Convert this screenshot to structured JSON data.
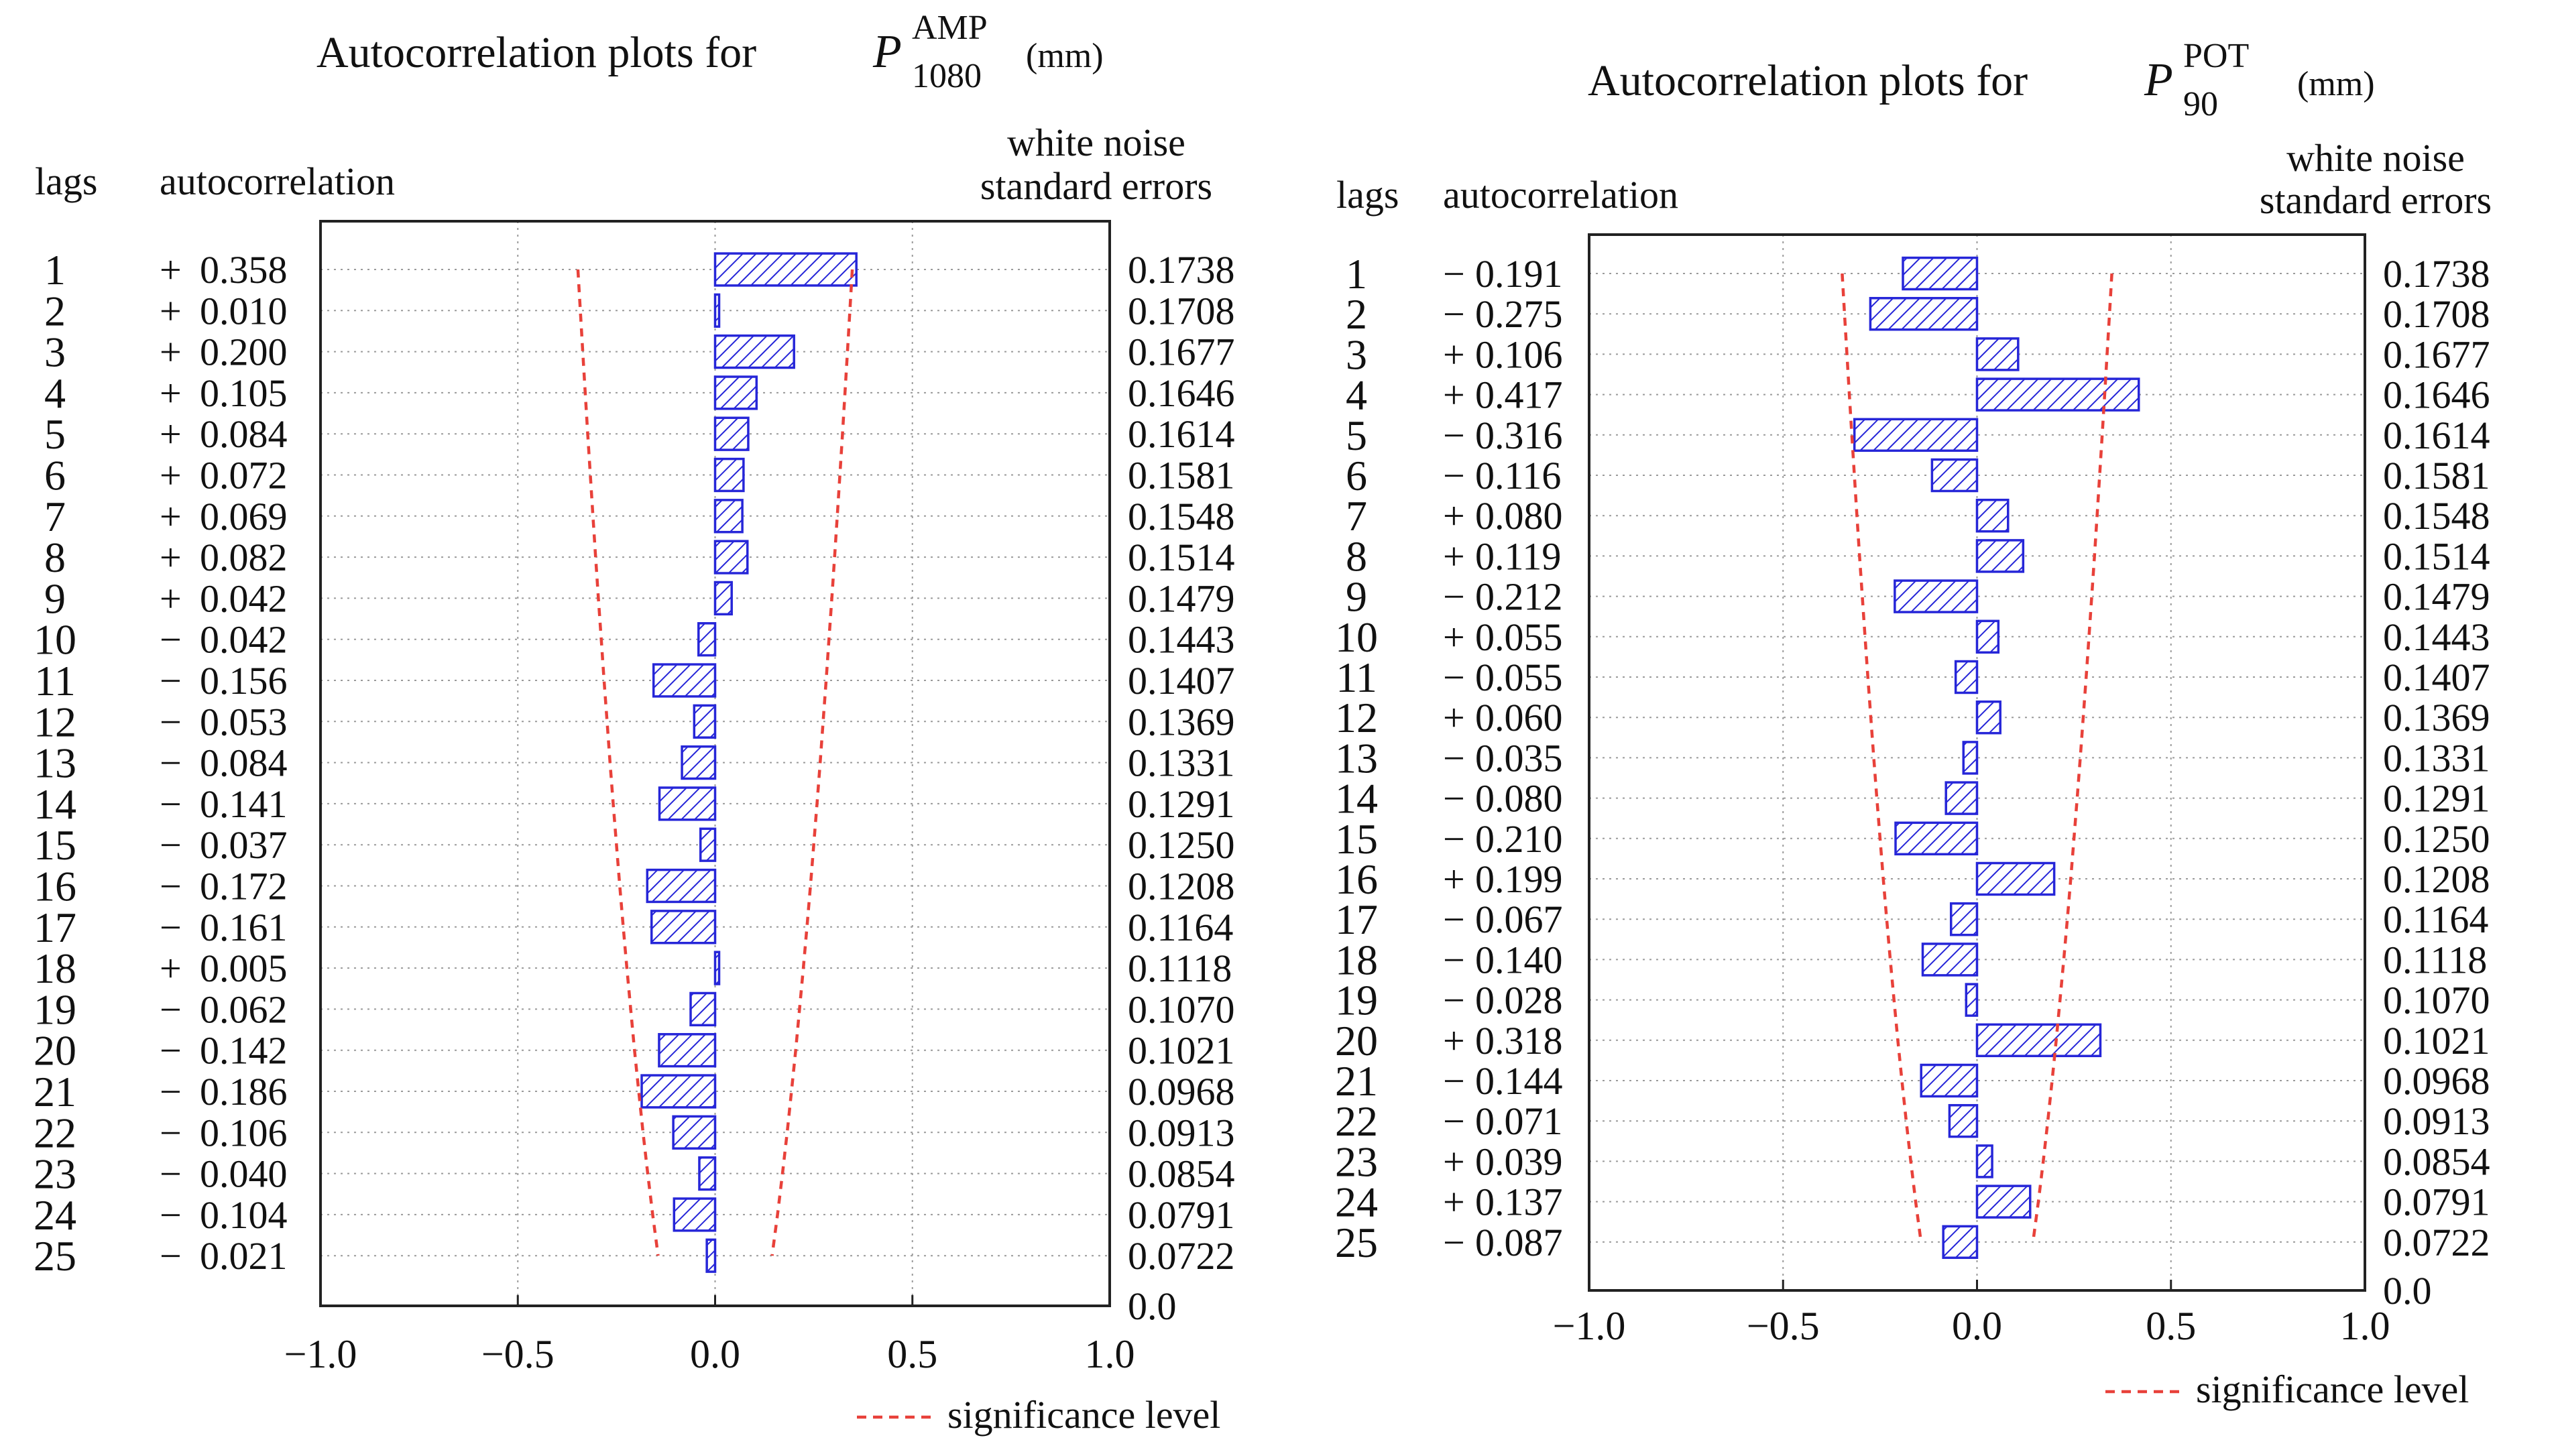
{
  "colors": {
    "bar_stroke": "#2626d8",
    "bar_hatch": "#2626d8",
    "significance": "#e8413a",
    "grid": "#9a9a9a",
    "axis": "#222222"
  },
  "chart_data": [
    {
      "type": "bar",
      "orientation": "horizontal",
      "title": "Autocorrelation plots for",
      "title_symbol": "P",
      "title_sup": "AMP",
      "title_sub": "1080",
      "title_unit": "(mm)",
      "col_lags": "lags",
      "col_autocorr": "autocorrelation",
      "col_se_line1": "white noise",
      "col_se_line2": "standard errors",
      "lags": [
        1,
        2,
        3,
        4,
        5,
        6,
        7,
        8,
        9,
        10,
        11,
        12,
        13,
        14,
        15,
        16,
        17,
        18,
        19,
        20,
        21,
        22,
        23,
        24,
        25
      ],
      "sign_labels": [
        "+",
        "+",
        "+",
        "+",
        "+",
        "+",
        "+",
        "+",
        "+",
        "−",
        "−",
        "−",
        "−",
        "−",
        "−",
        "−",
        "−",
        "+",
        "−",
        "−",
        "−",
        "−",
        "−",
        "−",
        "−"
      ],
      "value_labels": [
        "0.358",
        "0.010",
        "0.200",
        "0.105",
        "0.084",
        "0.072",
        "0.069",
        "0.082",
        "0.042",
        "0.042",
        "0.156",
        "0.053",
        "0.084",
        "0.141",
        "0.037",
        "0.172",
        "0.161",
        "0.005",
        "0.062",
        "0.142",
        "0.186",
        "0.106",
        "0.040",
        "0.104",
        "0.021"
      ],
      "values": [
        0.358,
        0.01,
        0.2,
        0.105,
        0.084,
        0.072,
        0.069,
        0.082,
        0.042,
        -0.042,
        -0.156,
        -0.053,
        -0.084,
        -0.141,
        -0.037,
        -0.172,
        -0.161,
        0.005,
        -0.062,
        -0.142,
        -0.186,
        -0.106,
        -0.04,
        -0.104,
        -0.021
      ],
      "se_labels": [
        "0.1738",
        "0.1708",
        "0.1677",
        "0.1646",
        "0.1614",
        "0.1581",
        "0.1548",
        "0.1514",
        "0.1479",
        "0.1443",
        "0.1407",
        "0.1369",
        "0.1331",
        "0.1291",
        "0.1250",
        "0.1208",
        "0.1164",
        "0.1118",
        "0.1070",
        "0.1021",
        "0.0968",
        "0.0913",
        "0.0854",
        "0.0791",
        "0.0722"
      ],
      "se_values": [
        0.1738,
        0.1708,
        0.1677,
        0.1646,
        0.1614,
        0.1581,
        0.1548,
        0.1514,
        0.1479,
        0.1443,
        0.1407,
        0.1369,
        0.1331,
        0.1291,
        0.125,
        0.1208,
        0.1164,
        0.1118,
        0.107,
        0.1021,
        0.0968,
        0.0913,
        0.0854,
        0.0791,
        0.0722
      ],
      "se_end_label": "0.0",
      "xlim": [
        -1.0,
        1.0
      ],
      "xticks": [
        -1.0,
        -0.5,
        0.0,
        0.5,
        1.0
      ],
      "xtick_labels": [
        "−1.0",
        "−0.5",
        "0.0",
        "0.5",
        "1.0"
      ],
      "grid": true,
      "legend_label": "significance level",
      "legend_position": "bottom-right"
    },
    {
      "type": "bar",
      "orientation": "horizontal",
      "title": "Autocorrelation plots for",
      "title_symbol": "P",
      "title_sup": "POT",
      "title_sub": "90",
      "title_unit": "(mm)",
      "col_lags": "lags",
      "col_autocorr": "autocorrelation",
      "col_se_line1": "white noise",
      "col_se_line2": "standard errors",
      "lags": [
        1,
        2,
        3,
        4,
        5,
        6,
        7,
        8,
        9,
        10,
        11,
        12,
        13,
        14,
        15,
        16,
        17,
        18,
        19,
        20,
        21,
        22,
        23,
        24,
        25
      ],
      "sign_labels": [
        "−",
        "−",
        "+",
        "+",
        "−",
        "−",
        "+",
        "+",
        "−",
        "+",
        "−",
        "+",
        "−",
        "−",
        "−",
        "+",
        "−",
        "−",
        "−",
        "+",
        "−",
        "−",
        "+",
        "+",
        "−"
      ],
      "value_labels": [
        "0.191",
        "0.275",
        "0.106",
        "0.417",
        "0.316",
        "0.116",
        "0.080",
        "0.119",
        "0.212",
        "0.055",
        "0.055",
        "0.060",
        "0.035",
        "0.080",
        "0.210",
        "0.199",
        "0.067",
        "0.140",
        "0.028",
        "0.318",
        "0.144",
        "0.071",
        "0.039",
        "0.137",
        "0.087"
      ],
      "values": [
        -0.191,
        -0.275,
        0.106,
        0.417,
        -0.316,
        -0.116,
        0.08,
        0.119,
        -0.212,
        0.055,
        -0.055,
        0.06,
        -0.035,
        -0.08,
        -0.21,
        0.199,
        -0.067,
        -0.14,
        -0.028,
        0.318,
        -0.144,
        -0.071,
        0.039,
        0.137,
        -0.087
      ],
      "se_labels": [
        "0.1738",
        "0.1708",
        "0.1677",
        "0.1646",
        "0.1614",
        "0.1581",
        "0.1548",
        "0.1514",
        "0.1479",
        "0.1443",
        "0.1407",
        "0.1369",
        "0.1331",
        "0.1291",
        "0.1250",
        "0.1208",
        "0.1164",
        "0.1118",
        "0.1070",
        "0.1021",
        "0.0968",
        "0.0913",
        "0.0854",
        "0.0791",
        "0.0722"
      ],
      "se_values": [
        0.1738,
        0.1708,
        0.1677,
        0.1646,
        0.1614,
        0.1581,
        0.1548,
        0.1514,
        0.1479,
        0.1443,
        0.1407,
        0.1369,
        0.1331,
        0.1291,
        0.125,
        0.1208,
        0.1164,
        0.1118,
        0.107,
        0.1021,
        0.0968,
        0.0913,
        0.0854,
        0.0791,
        0.0722
      ],
      "se_end_label": "0.0",
      "xlim": [
        -1.0,
        1.0
      ],
      "xticks": [
        -1.0,
        -0.5,
        0.0,
        0.5,
        1.0
      ],
      "xtick_labels": [
        "−1.0",
        "−0.5",
        "0.0",
        "0.5",
        "1.0"
      ],
      "grid": true,
      "legend_label": "significance level",
      "legend_position": "bottom-right"
    }
  ]
}
